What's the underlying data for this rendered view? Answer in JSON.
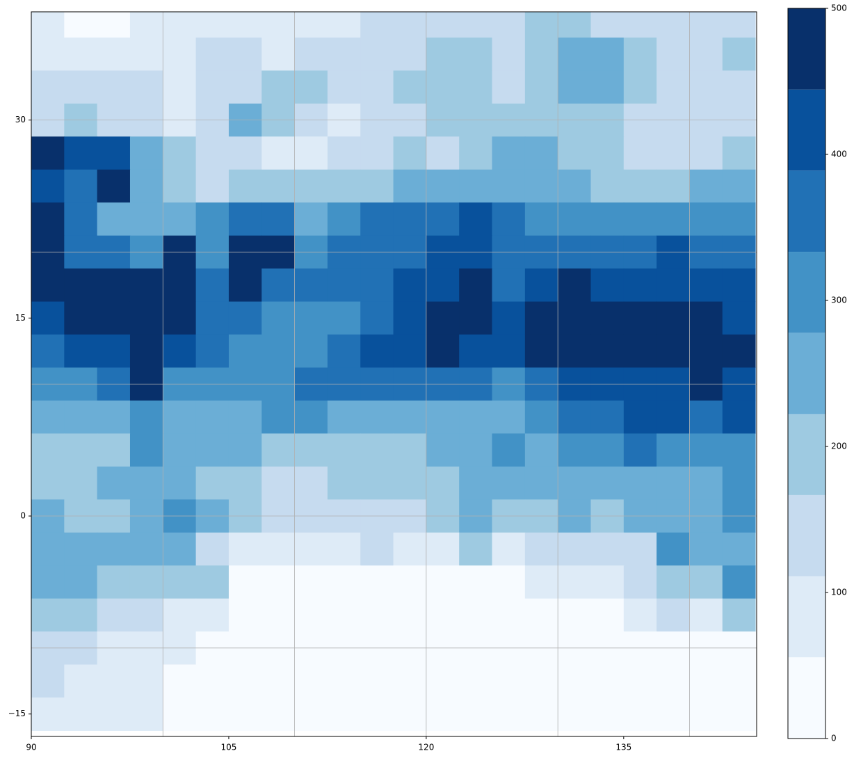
{
  "chart_data": {
    "type": "heatmap",
    "x": [
      91.25,
      93.75,
      96.25,
      98.75,
      101.25,
      103.75,
      106.25,
      108.75,
      111.25,
      113.75,
      116.25,
      118.75,
      121.25,
      123.75,
      126.25,
      128.75,
      131.25,
      133.75,
      136.25,
      138.75,
      141.25,
      143.75
    ],
    "y": [
      37.5,
      35,
      32.5,
      30,
      27.5,
      25,
      22.5,
      20,
      17.5,
      15,
      12.5,
      10,
      7.5,
      5,
      2.5,
      0,
      -2.5,
      -5,
      -7.5,
      -10,
      -12.5,
      -15
    ],
    "z": [
      [
        80,
        25,
        25,
        80,
        80,
        80,
        80,
        80,
        80,
        80,
        140,
        140,
        140,
        140,
        140,
        195,
        195,
        140,
        140,
        140,
        140,
        140
      ],
      [
        80,
        80,
        80,
        80,
        80,
        140,
        140,
        80,
        140,
        140,
        140,
        140,
        195,
        195,
        140,
        195,
        250,
        250,
        195,
        140,
        140,
        195
      ],
      [
        140,
        140,
        140,
        140,
        80,
        140,
        140,
        195,
        195,
        140,
        140,
        195,
        195,
        195,
        140,
        195,
        250,
        250,
        195,
        140,
        140,
        140
      ],
      [
        140,
        195,
        140,
        140,
        80,
        140,
        250,
        195,
        140,
        80,
        140,
        140,
        195,
        195,
        195,
        195,
        195,
        195,
        140,
        140,
        140,
        140
      ],
      [
        470,
        415,
        415,
        250,
        195,
        140,
        140,
        80,
        80,
        140,
        140,
        195,
        140,
        195,
        250,
        250,
        195,
        195,
        140,
        140,
        140,
        195
      ],
      [
        415,
        360,
        470,
        250,
        195,
        140,
        195,
        195,
        195,
        195,
        195,
        250,
        250,
        250,
        250,
        250,
        250,
        195,
        195,
        195,
        250,
        250
      ],
      [
        470,
        360,
        250,
        250,
        250,
        305,
        360,
        360,
        250,
        305,
        360,
        360,
        360,
        415,
        360,
        305,
        305,
        305,
        305,
        305,
        305,
        305
      ],
      [
        470,
        360,
        360,
        305,
        470,
        305,
        470,
        470,
        305,
        360,
        360,
        360,
        415,
        415,
        360,
        360,
        360,
        360,
        360,
        415,
        360,
        360
      ],
      [
        470,
        470,
        470,
        470,
        470,
        360,
        470,
        360,
        360,
        360,
        360,
        415,
        415,
        470,
        360,
        415,
        470,
        415,
        415,
        415,
        415,
        415
      ],
      [
        415,
        470,
        470,
        470,
        470,
        360,
        360,
        305,
        305,
        305,
        360,
        415,
        470,
        470,
        415,
        470,
        470,
        470,
        470,
        470,
        470,
        415
      ],
      [
        360,
        415,
        415,
        470,
        415,
        360,
        305,
        305,
        305,
        360,
        415,
        415,
        470,
        415,
        415,
        470,
        470,
        470,
        470,
        470,
        470,
        470
      ],
      [
        305,
        305,
        360,
        470,
        305,
        305,
        305,
        305,
        360,
        360,
        360,
        360,
        360,
        360,
        305,
        360,
        415,
        415,
        415,
        415,
        470,
        415
      ],
      [
        250,
        250,
        250,
        305,
        250,
        250,
        250,
        305,
        305,
        250,
        250,
        250,
        250,
        250,
        250,
        305,
        360,
        360,
        415,
        415,
        360,
        415
      ],
      [
        195,
        195,
        195,
        305,
        250,
        250,
        250,
        195,
        195,
        195,
        195,
        195,
        250,
        250,
        305,
        250,
        305,
        305,
        360,
        305,
        305,
        305
      ],
      [
        195,
        195,
        250,
        250,
        250,
        195,
        195,
        140,
        140,
        195,
        195,
        195,
        195,
        250,
        250,
        250,
        250,
        250,
        250,
        250,
        250,
        305
      ],
      [
        250,
        195,
        195,
        250,
        305,
        250,
        195,
        140,
        140,
        140,
        140,
        140,
        195,
        250,
        195,
        195,
        250,
        195,
        250,
        250,
        250,
        305
      ],
      [
        250,
        250,
        250,
        250,
        250,
        140,
        80,
        80,
        80,
        80,
        140,
        80,
        80,
        195,
        80,
        140,
        140,
        140,
        140,
        305,
        250,
        250
      ],
      [
        250,
        250,
        195,
        195,
        195,
        195,
        25,
        25,
        25,
        25,
        25,
        25,
        25,
        25,
        25,
        80,
        80,
        80,
        140,
        195,
        195,
        305
      ],
      [
        195,
        195,
        140,
        140,
        80,
        80,
        25,
        25,
        25,
        25,
        25,
        25,
        25,
        25,
        25,
        25,
        25,
        25,
        80,
        140,
        80,
        195
      ],
      [
        140,
        140,
        80,
        80,
        80,
        25,
        25,
        25,
        25,
        25,
        25,
        25,
        25,
        25,
        25,
        25,
        25,
        25,
        25,
        25,
        25,
        25
      ],
      [
        140,
        80,
        80,
        80,
        25,
        25,
        25,
        25,
        25,
        25,
        25,
        25,
        25,
        25,
        25,
        25,
        25,
        25,
        25,
        25,
        25,
        25
      ],
      [
        80,
        80,
        80,
        80,
        25,
        25,
        25,
        25,
        25,
        25,
        25,
        25,
        25,
        25,
        25,
        25,
        25,
        25,
        25,
        25,
        25,
        25
      ]
    ],
    "xlim": [
      90,
      145.1
    ],
    "ylim": [
      -16.7,
      38.2
    ],
    "xticks": [
      90,
      105,
      120,
      135
    ],
    "yticks": [
      {
        "value": -15,
        "label": "−15"
      },
      0,
      15,
      30
    ],
    "xgrid": [
      100,
      110,
      120,
      130,
      140
    ],
    "ygrid": [
      -10,
      0,
      10,
      20,
      30
    ],
    "levels": [
      0,
      55.6,
      111.1,
      166.7,
      222.2,
      277.8,
      333.3,
      388.9,
      444.4,
      500
    ],
    "colors": [
      "#f7fbff",
      "#deebf7",
      "#c6dbef",
      "#9ecae1",
      "#6baed6",
      "#4292c6",
      "#2171b5",
      "#08519c",
      "#08306b"
    ],
    "cbar_ticks": [
      0,
      100,
      200,
      300,
      400,
      500
    ],
    "grid": true
  }
}
